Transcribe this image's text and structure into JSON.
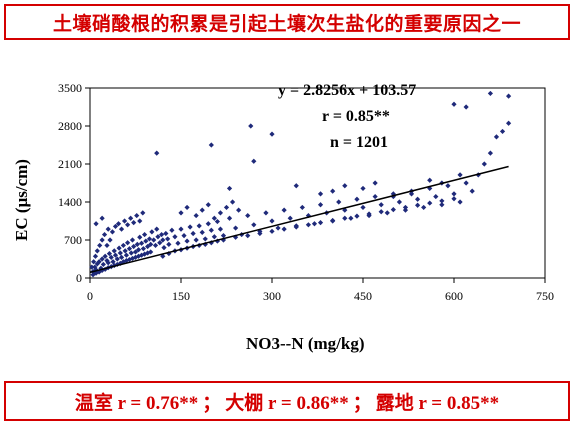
{
  "title": "土壤硝酸根的积累是引起土壤次生盐化的重要原因之一",
  "annotations": {
    "equation": "y = 2.8256x + 103.57",
    "r": "r = 0.85**",
    "n": "n = 1201"
  },
  "footer": {
    "greenhouse": "温室 r = 0.76**",
    "sep1": "；",
    "tunnel": "大棚 r = 0.86**",
    "sep2": "；",
    "field": "露地 r = 0.85**"
  },
  "colors": {
    "accent": "#d40000",
    "points": "#1f2a7a",
    "line": "#000000"
  },
  "chart_data": {
    "type": "scatter",
    "title": "",
    "xlabel": "NO3--N (mg/kg)",
    "ylabel": "EC (μs/cm)",
    "xlim": [
      0,
      750
    ],
    "ylim": [
      0,
      3500
    ],
    "xticks": [
      0,
      150,
      300,
      450,
      600,
      750
    ],
    "yticks": [
      0,
      700,
      1400,
      2100,
      2800,
      3500
    ],
    "trendline": {
      "slope": 2.8256,
      "intercept": 103.57,
      "x_range": [
        0,
        690
      ]
    },
    "points": [
      [
        5,
        120
      ],
      [
        8,
        200
      ],
      [
        10,
        150
      ],
      [
        12,
        260
      ],
      [
        15,
        300
      ],
      [
        18,
        180
      ],
      [
        20,
        350
      ],
      [
        22,
        250
      ],
      [
        25,
        400
      ],
      [
        28,
        320
      ],
      [
        30,
        280
      ],
      [
        32,
        450
      ],
      [
        35,
        380
      ],
      [
        38,
        300
      ],
      [
        40,
        500
      ],
      [
        42,
        420
      ],
      [
        45,
        350
      ],
      [
        48,
        550
      ],
      [
        50,
        460
      ],
      [
        52,
        380
      ],
      [
        55,
        600
      ],
      [
        58,
        500
      ],
      [
        60,
        420
      ],
      [
        62,
        650
      ],
      [
        65,
        540
      ],
      [
        68,
        460
      ],
      [
        70,
        700
      ],
      [
        72,
        580
      ],
      [
        75,
        480
      ],
      [
        78,
        620
      ],
      [
        80,
        520
      ],
      [
        82,
        750
      ],
      [
        85,
        640
      ],
      [
        88,
        540
      ],
      [
        90,
        800
      ],
      [
        92,
        680
      ],
      [
        95,
        580
      ],
      [
        98,
        720
      ],
      [
        100,
        620
      ],
      [
        102,
        850
      ],
      [
        105,
        700
      ],
      [
        108,
        600
      ],
      [
        110,
        900
      ],
      [
        112,
        760
      ],
      [
        115,
        650
      ],
      [
        118,
        800
      ],
      [
        120,
        700
      ],
      [
        122,
        560
      ],
      [
        125,
        820
      ],
      [
        128,
        720
      ],
      [
        130,
        620
      ],
      [
        135,
        880
      ],
      [
        140,
        760
      ],
      [
        145,
        640
      ],
      [
        150,
        900
      ],
      [
        155,
        780
      ],
      [
        160,
        680
      ],
      [
        165,
        940
      ],
      [
        170,
        820
      ],
      [
        175,
        700
      ],
      [
        180,
        960
      ],
      [
        185,
        840
      ],
      [
        190,
        720
      ],
      [
        195,
        1000
      ],
      [
        200,
        880
      ],
      [
        205,
        760
      ],
      [
        210,
        1040
      ],
      [
        215,
        900
      ],
      [
        220,
        780
      ],
      [
        230,
        1100
      ],
      [
        240,
        920
      ],
      [
        250,
        800
      ],
      [
        260,
        1150
      ],
      [
        270,
        980
      ],
      [
        280,
        860
      ],
      [
        290,
        1200
      ],
      [
        300,
        1050
      ],
      [
        310,
        920
      ],
      [
        320,
        1250
      ],
      [
        330,
        1100
      ],
      [
        340,
        960
      ],
      [
        350,
        1300
      ],
      [
        360,
        1150
      ],
      [
        370,
        1000
      ],
      [
        380,
        1350
      ],
      [
        390,
        1200
      ],
      [
        400,
        1050
      ],
      [
        410,
        1400
      ],
      [
        420,
        1250
      ],
      [
        430,
        1100
      ],
      [
        440,
        1450
      ],
      [
        450,
        1300
      ],
      [
        460,
        1150
      ],
      [
        470,
        1500
      ],
      [
        480,
        1350
      ],
      [
        490,
        1200
      ],
      [
        500,
        1550
      ],
      [
        510,
        1400
      ],
      [
        520,
        1250
      ],
      [
        530,
        1600
      ],
      [
        540,
        1450
      ],
      [
        550,
        1300
      ],
      [
        560,
        1650
      ],
      [
        570,
        1500
      ],
      [
        580,
        1350
      ],
      [
        590,
        1700
      ],
      [
        600,
        1550
      ],
      [
        610,
        1400
      ],
      [
        620,
        1750
      ],
      [
        630,
        1600
      ],
      [
        640,
        1900
      ],
      [
        650,
        2100
      ],
      [
        660,
        2300
      ],
      [
        670,
        2600
      ],
      [
        680,
        2700
      ],
      [
        690,
        3350
      ],
      [
        660,
        3400
      ],
      [
        620,
        3150
      ],
      [
        600,
        3200
      ],
      [
        690,
        2850
      ],
      [
        110,
        2300
      ],
      [
        200,
        2450
      ],
      [
        265,
        2800
      ],
      [
        270,
        2150
      ],
      [
        300,
        2650
      ],
      [
        340,
        1700
      ],
      [
        230,
        1650
      ],
      [
        20,
        1100
      ],
      [
        10,
        1000
      ],
      [
        30,
        900
      ],
      [
        5,
        60
      ],
      [
        10,
        90
      ],
      [
        15,
        110
      ],
      [
        20,
        140
      ],
      [
        25,
        160
      ],
      [
        30,
        190
      ],
      [
        35,
        210
      ],
      [
        40,
        230
      ],
      [
        45,
        250
      ],
      [
        50,
        270
      ],
      [
        55,
        300
      ],
      [
        60,
        320
      ],
      [
        65,
        340
      ],
      [
        70,
        360
      ],
      [
        75,
        380
      ],
      [
        80,
        400
      ],
      [
        85,
        420
      ],
      [
        90,
        440
      ],
      [
        95,
        460
      ],
      [
        100,
        480
      ],
      [
        3,
        200
      ],
      [
        6,
        300
      ],
      [
        9,
        400
      ],
      [
        12,
        500
      ],
      [
        16,
        600
      ],
      [
        20,
        700
      ],
      [
        24,
        800
      ],
      [
        28,
        600
      ],
      [
        33,
        700
      ],
      [
        37,
        850
      ],
      [
        42,
        950
      ],
      [
        47,
        1000
      ],
      [
        52,
        900
      ],
      [
        57,
        1050
      ],
      [
        62,
        980
      ],
      [
        67,
        1100
      ],
      [
        72,
        1020
      ],
      [
        77,
        1150
      ],
      [
        82,
        1050
      ],
      [
        87,
        1200
      ],
      [
        120,
        400
      ],
      [
        130,
        450
      ],
      [
        140,
        500
      ],
      [
        150,
        520
      ],
      [
        160,
        550
      ],
      [
        170,
        580
      ],
      [
        180,
        600
      ],
      [
        190,
        620
      ],
      [
        200,
        650
      ],
      [
        210,
        680
      ],
      [
        220,
        700
      ],
      [
        240,
        750
      ],
      [
        260,
        780
      ],
      [
        280,
        820
      ],
      [
        300,
        860
      ],
      [
        320,
        900
      ],
      [
        340,
        940
      ],
      [
        360,
        980
      ],
      [
        380,
        1020
      ],
      [
        400,
        1060
      ],
      [
        420,
        1100
      ],
      [
        440,
        1140
      ],
      [
        460,
        1180
      ],
      [
        480,
        1220
      ],
      [
        500,
        1260
      ],
      [
        520,
        1300
      ],
      [
        540,
        1340
      ],
      [
        560,
        1380
      ],
      [
        580,
        1420
      ],
      [
        600,
        1460
      ],
      [
        150,
        1200
      ],
      [
        160,
        1300
      ],
      [
        175,
        1150
      ],
      [
        185,
        1250
      ],
      [
        195,
        1350
      ],
      [
        205,
        1100
      ],
      [
        215,
        1200
      ],
      [
        225,
        1300
      ],
      [
        235,
        1400
      ],
      [
        245,
        1250
      ],
      [
        380,
        1550
      ],
      [
        400,
        1600
      ],
      [
        420,
        1700
      ],
      [
        450,
        1650
      ],
      [
        470,
        1750
      ],
      [
        500,
        1500
      ],
      [
        530,
        1550
      ],
      [
        560,
        1800
      ],
      [
        580,
        1750
      ],
      [
        610,
        1900
      ]
    ]
  }
}
